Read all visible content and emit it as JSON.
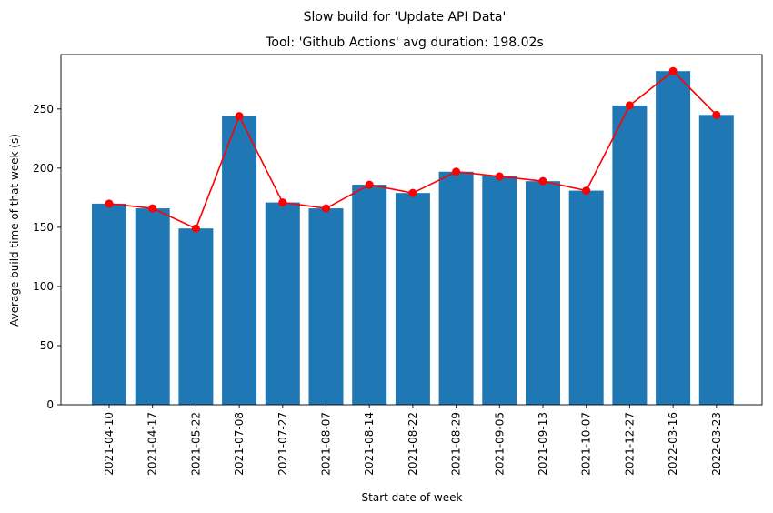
{
  "chart_data": {
    "type": "bar",
    "suptitle": "Slow build for 'Update API Data'",
    "title": "Tool: 'Github Actions' avg duration: 198.02s",
    "xlabel": "Start date of week",
    "ylabel": "Average build time of that week (s)",
    "ylim": [
      0,
      296
    ],
    "yticks": [
      0,
      50,
      100,
      150,
      200,
      250
    ],
    "categories": [
      "2021-04-10",
      "2021-04-17",
      "2021-05-22",
      "2021-07-08",
      "2021-07-27",
      "2021-08-07",
      "2021-08-14",
      "2021-08-22",
      "2021-08-29",
      "2021-09-05",
      "2021-09-13",
      "2021-10-07",
      "2021-12-27",
      "2022-03-16",
      "2022-03-23"
    ],
    "series": [
      {
        "type": "bar",
        "values": [
          170,
          166,
          149,
          244,
          171,
          166,
          186,
          179,
          197,
          193,
          189,
          181,
          253,
          282,
          245
        ],
        "color": "#1f77b4"
      },
      {
        "type": "line",
        "values": [
          170,
          166,
          149,
          244,
          171,
          166,
          186,
          179,
          197,
          193,
          189,
          181,
          253,
          282,
          245
        ],
        "color": "#ff0000",
        "marker": "circle"
      }
    ],
    "grid": false,
    "legend": false
  }
}
